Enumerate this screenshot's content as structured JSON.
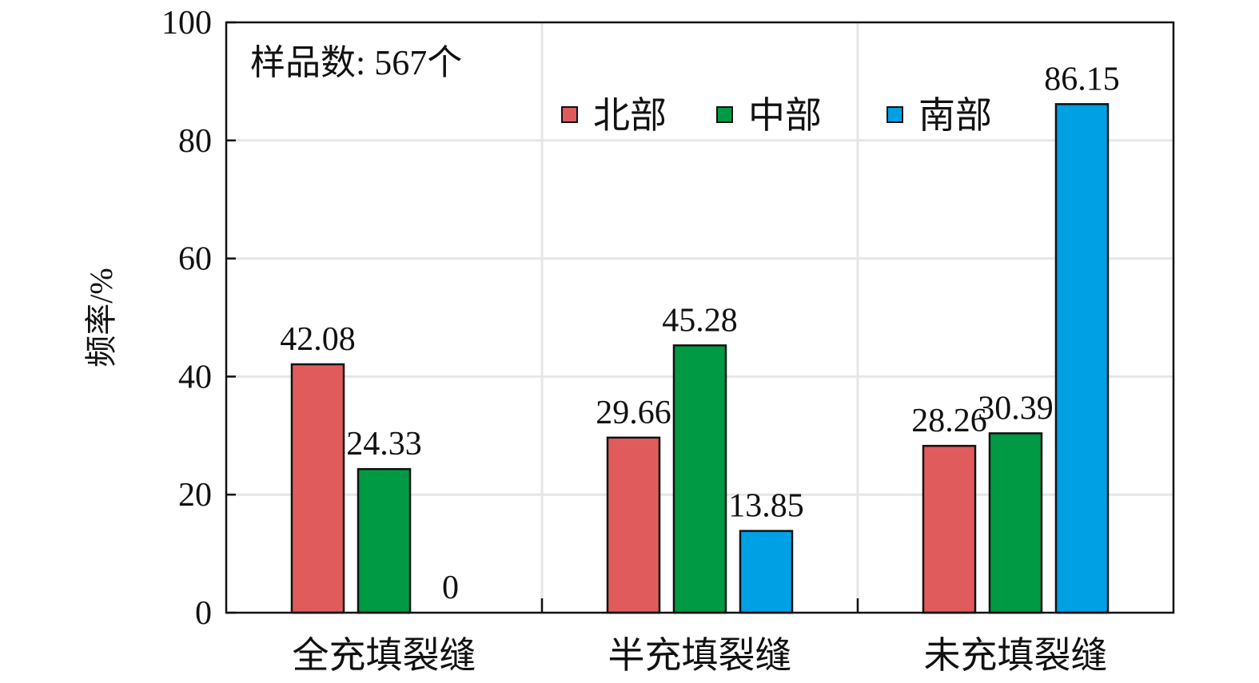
{
  "chart_data": {
    "type": "bar",
    "note": "样品数: 567个",
    "ylabel": "频率/%",
    "xlabel": "",
    "ylim": [
      0,
      100
    ],
    "yticks": [
      0,
      20,
      40,
      60,
      80,
      100
    ],
    "grid": true,
    "legend_position": "top-right",
    "categories": [
      "全充填裂缝",
      "半充填裂缝",
      "未充填裂缝"
    ],
    "series": [
      {
        "name": "北部",
        "color": "#e05c5c",
        "values": [
          42.08,
          29.66,
          28.26
        ],
        "labels": [
          "42.08",
          "29.66",
          "28.26"
        ]
      },
      {
        "name": "中部",
        "color": "#009a44",
        "values": [
          24.33,
          45.28,
          30.39
        ],
        "labels": [
          "24.33",
          "45.28",
          "30.39"
        ]
      },
      {
        "name": "南部",
        "color": "#00a0e4",
        "values": [
          0,
          13.85,
          86.15
        ],
        "labels": [
          "0",
          "13.85",
          "86.15"
        ]
      }
    ]
  }
}
